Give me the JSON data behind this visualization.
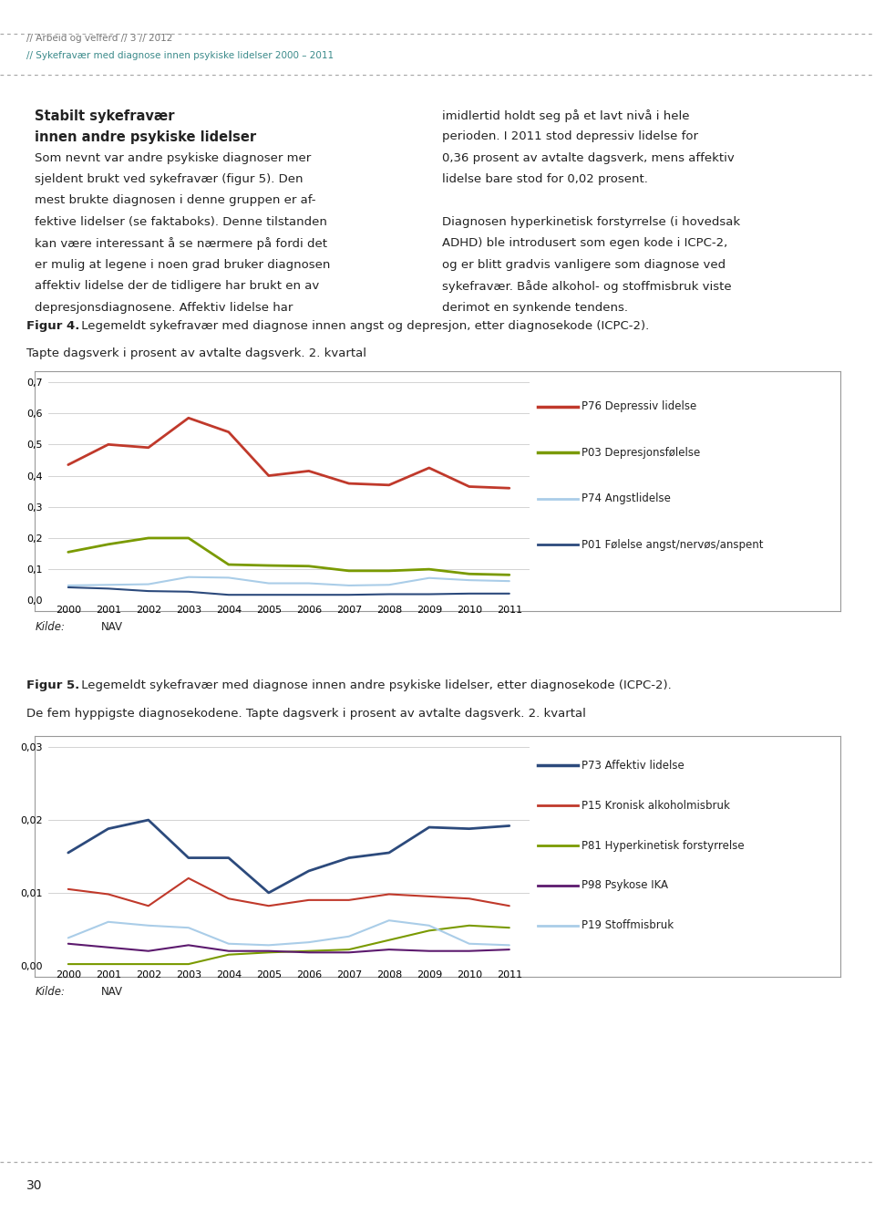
{
  "page_header_line1": "// Arbeid og velferd // 3 // 2012",
  "page_header_line2": "// Sykefravær med diagnose innen psykiske lidelser 2000 – 2011",
  "page_footer": "30",
  "fig4_caption_bold": "Figur 4.",
  "fig4_caption_rest": " Legemeldt sykefravær med diagnose innen angst og depresjon, etter diagnosekode (ICPC-2).",
  "fig4_caption_line2": "Tapte dagsverk i prosent av avtalte dagsverk. 2. kvartal",
  "fig5_caption_bold": "Figur 5.",
  "fig5_caption_rest": " Legemeldt sykefravær med diagnose innen andre psykiske lidelser, etter diagnosekode (ICPC-2).",
  "fig5_caption_line2": "De fem hyppigste diagnosekodene. Tapte dagsverk i prosent av avtalte dagsverk. 2. kvartal",
  "kilde_italic": "Kilde:",
  "kilde_plain": " NAV",
  "years": [
    2000,
    2001,
    2002,
    2003,
    2004,
    2005,
    2006,
    2007,
    2008,
    2009,
    2010,
    2011
  ],
  "fig4": {
    "ylim": [
      0.0,
      0.7
    ],
    "yticks": [
      0.0,
      0.1,
      0.2,
      0.3,
      0.4,
      0.5,
      0.6,
      0.7
    ],
    "series": [
      {
        "name": "P76 Depressiv lidelse",
        "color": "#c0392b",
        "linewidth": 2.0,
        "values": [
          0.435,
          0.5,
          0.49,
          0.585,
          0.54,
          0.4,
          0.415,
          0.375,
          0.37,
          0.425,
          0.365,
          0.36
        ]
      },
      {
        "name": "P03 Depresjonsfølelse",
        "color": "#7a9a01",
        "linewidth": 2.0,
        "values": [
          0.155,
          0.18,
          0.2,
          0.2,
          0.115,
          0.112,
          0.11,
          0.095,
          0.095,
          0.1,
          0.085,
          0.082
        ]
      },
      {
        "name": "P74 Angstlidelse",
        "color": "#aacde8",
        "linewidth": 1.5,
        "values": [
          0.048,
          0.05,
          0.052,
          0.075,
          0.073,
          0.055,
          0.055,
          0.048,
          0.05,
          0.072,
          0.065,
          0.062
        ]
      },
      {
        "name": "P01 Følelse angst/nervøs/anspent",
        "color": "#2c4a7c",
        "linewidth": 1.5,
        "values": [
          0.042,
          0.038,
          0.03,
          0.028,
          0.018,
          0.018,
          0.018,
          0.018,
          0.02,
          0.02,
          0.022,
          0.022
        ]
      }
    ]
  },
  "fig5": {
    "ylim": [
      0.0,
      0.03
    ],
    "yticks": [
      0.0,
      0.01,
      0.02,
      0.03
    ],
    "series": [
      {
        "name": "P73 Affektiv lidelse",
        "color": "#2c4a7c",
        "linewidth": 2.0,
        "values": [
          0.0155,
          0.0188,
          0.02,
          0.0148,
          0.0148,
          0.01,
          0.013,
          0.0148,
          0.0155,
          0.019,
          0.0188,
          0.0192
        ]
      },
      {
        "name": "P15 Kronisk alkoholmisbruk",
        "color": "#c0392b",
        "linewidth": 1.5,
        "values": [
          0.0105,
          0.0098,
          0.0082,
          0.012,
          0.0092,
          0.0082,
          0.009,
          0.009,
          0.0098,
          0.0095,
          0.0092,
          0.0082
        ]
      },
      {
        "name": "P81 Hyperkinetisk forstyrrelse",
        "color": "#7a9a01",
        "linewidth": 1.5,
        "values": [
          0.0002,
          0.0002,
          0.0002,
          0.0002,
          0.0015,
          0.0018,
          0.002,
          0.0022,
          0.0035,
          0.0048,
          0.0055,
          0.0052
        ]
      },
      {
        "name": "P98 Psykose IKA",
        "color": "#5c1a6e",
        "linewidth": 1.5,
        "values": [
          0.003,
          0.0025,
          0.002,
          0.0028,
          0.002,
          0.002,
          0.0018,
          0.0018,
          0.0022,
          0.002,
          0.002,
          0.0022
        ]
      },
      {
        "name": "P19 Stoffmisbruk",
        "color": "#aacde8",
        "linewidth": 1.5,
        "values": [
          0.0038,
          0.006,
          0.0055,
          0.0052,
          0.003,
          0.0028,
          0.0032,
          0.004,
          0.0062,
          0.0055,
          0.003,
          0.0028
        ]
      }
    ]
  },
  "bg_color": "#ffffff",
  "chart_bg": "#ffffff",
  "grid_color": "#cccccc",
  "border_color": "#999999",
  "header_color": "#3a8a8a",
  "header_gray": "#777777",
  "text_color": "#222222",
  "dotted_line_color": "#aaaaaa",
  "left_lines": [
    [
      "Stabilt sykefravær",
      true
    ],
    [
      "innen andre psykiske lidelser",
      true
    ],
    [
      "Som nevnt var andre psykiske diagnoser mer",
      false
    ],
    [
      "sjeldent brukt ved sykefravær (figur 5). Den",
      false
    ],
    [
      "mest brukte diagnosen i denne gruppen er af-",
      false
    ],
    [
      "fektive lidelser (se faktaboks). Denne tilstanden",
      false
    ],
    [
      "kan være interessant å se nærmere på fordi det",
      false
    ],
    [
      "er mulig at legene i noen grad bruker diagnosen",
      false
    ],
    [
      "affektiv lidelse der de tidligere har brukt en av",
      false
    ],
    [
      "depresjonsdiagnosene. Affektiv lidelse har",
      false
    ]
  ],
  "right_lines": [
    [
      "imidlertid holdt seg på et lavt nivå i hele",
      false
    ],
    [
      "perioden. I 2011 stod depressiv lidelse for",
      false
    ],
    [
      "0,36 prosent av avtalte dagsverk, mens affektiv",
      false
    ],
    [
      "lidelse bare stod for 0,02 prosent.",
      false
    ],
    [
      "",
      false
    ],
    [
      "Diagnosen hyperkinetisk forstyrrelse (i hovedsak",
      false
    ],
    [
      "ADHD) ble introdusert som egen kode i ICPC-2,",
      false
    ],
    [
      "og er blitt gradvis vanligere som diagnose ved",
      false
    ],
    [
      "sykefravær. Både alkohol- og stoffmisbruk viste",
      false
    ],
    [
      "derimot en synkende tendens.",
      false
    ]
  ]
}
